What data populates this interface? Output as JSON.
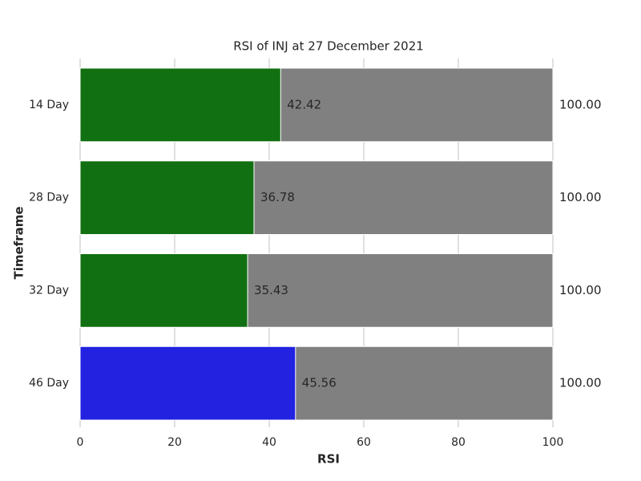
{
  "chart_data": {
    "type": "bar",
    "orientation": "horizontal",
    "title": "RSI of INJ at 27 December 2021",
    "xlabel": "RSI",
    "ylabel": "Timeframe",
    "categories": [
      "14 Day",
      "28 Day",
      "32 Day",
      "46 Day"
    ],
    "series": [
      {
        "color": "#808080",
        "values": [
          100,
          100,
          100,
          100
        ],
        "value_labels": [
          "100.00",
          "100.00",
          "100.00",
          "100.00"
        ]
      },
      {
        "colors": [
          "#117011",
          "#117011",
          "#117011",
          "#2222e0"
        ],
        "values": [
          42.42,
          36.78,
          35.43,
          45.56
        ],
        "value_labels": [
          "42.42",
          "36.78",
          "35.43",
          "45.56"
        ]
      }
    ],
    "xlim": [
      0,
      100
    ],
    "xticks": [
      0,
      20,
      40,
      60,
      80,
      100
    ],
    "grid": true
  }
}
